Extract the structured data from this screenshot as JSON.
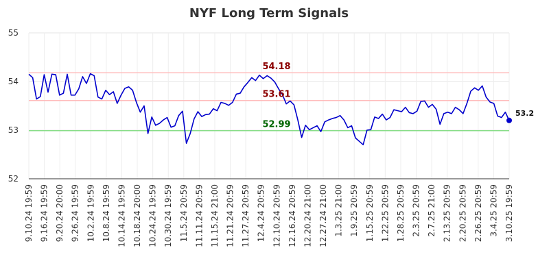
{
  "chart_data": {
    "type": "line",
    "title": "NYF Long Term Signals",
    "xlabel": "",
    "ylabel": "",
    "ylim": [
      52,
      55
    ],
    "y_ticks": [
      "52",
      "53",
      "54",
      "55"
    ],
    "grid": true,
    "x_tick_labels": [
      "9.10.24 19:59",
      "9.16.24 19:59",
      "9.20.24 20:00",
      "9.26.24 19:59",
      "10.2.24 19:59",
      "10.8.24 19:59",
      "10.14.24 19:59",
      "10.18.24 20:00",
      "10.24.24 19:59",
      "10.30.24 19:59",
      "11.5.24 20:59",
      "11.11.24 20:59",
      "11.15.24 21:00",
      "11.21.24 20:59",
      "11.27.24 20:59",
      "12.4.24 20:59",
      "12.10.24 20:59",
      "12.16.24 20:59",
      "12.20.24 21:00",
      "12.27.24 21:00",
      "1.3.25 21:00",
      "1.9.25 20:59",
      "1.15.25 20:59",
      "1.22.25 20:59",
      "1.28.25 20:59",
      "2.3.25 20:59",
      "2.7.25 21:00",
      "2.13.25 20:59",
      "2.20.25 20:59",
      "2.26.25 20:59",
      "3.4.25 20:59",
      "3.10.25 19:59"
    ],
    "series": [
      {
        "color": "#0000cc",
        "values": [
          54.15,
          54.08,
          53.64,
          53.69,
          54.14,
          53.78,
          54.15,
          54.14,
          53.72,
          53.76,
          54.15,
          53.72,
          53.72,
          53.85,
          54.1,
          53.96,
          54.16,
          54.12,
          53.68,
          53.64,
          53.82,
          53.73,
          53.79,
          53.55,
          53.72,
          53.86,
          53.89,
          53.82,
          53.57,
          53.37,
          53.5,
          52.93,
          53.27,
          53.1,
          53.14,
          53.21,
          53.26,
          53.06,
          53.09,
          53.3,
          53.39,
          52.73,
          52.93,
          53.23,
          53.38,
          53.28,
          53.32,
          53.33,
          53.44,
          53.4,
          53.57,
          53.55,
          53.51,
          53.57,
          53.74,
          53.76,
          53.89,
          53.98,
          54.08,
          54.02,
          54.13,
          54.06,
          54.12,
          54.07,
          53.99,
          53.85,
          53.73,
          53.54,
          53.6,
          53.52,
          53.21,
          52.85,
          53.1,
          53.01,
          53.05,
          53.09,
          52.97,
          53.17,
          53.21,
          53.24,
          53.26,
          53.3,
          53.21,
          53.05,
          53.09,
          52.84,
          52.77,
          52.7,
          53.0,
          53.01,
          53.27,
          53.24,
          53.33,
          53.21,
          53.26,
          53.42,
          53.4,
          53.38,
          53.47,
          53.36,
          53.34,
          53.39,
          53.59,
          53.6,
          53.47,
          53.53,
          53.43,
          53.12,
          53.34,
          53.37,
          53.34,
          53.47,
          53.42,
          53.34,
          53.55,
          53.8,
          53.87,
          53.82,
          53.91,
          53.68,
          53.58,
          53.55,
          53.29,
          53.26,
          53.37,
          53.2
        ]
      }
    ],
    "reference_lines": [
      {
        "value": 54.18,
        "label": "54.18",
        "line_color": "#ffbbbb",
        "label_color": "#8b0000"
      },
      {
        "value": 53.61,
        "label": "53.61",
        "line_color": "#ffbbbb",
        "label_color": "#8b0000"
      },
      {
        "value": 52.99,
        "label": "52.99",
        "line_color": "#88dd88",
        "label_color": "#006400"
      }
    ],
    "last_value_label": "53.2"
  }
}
